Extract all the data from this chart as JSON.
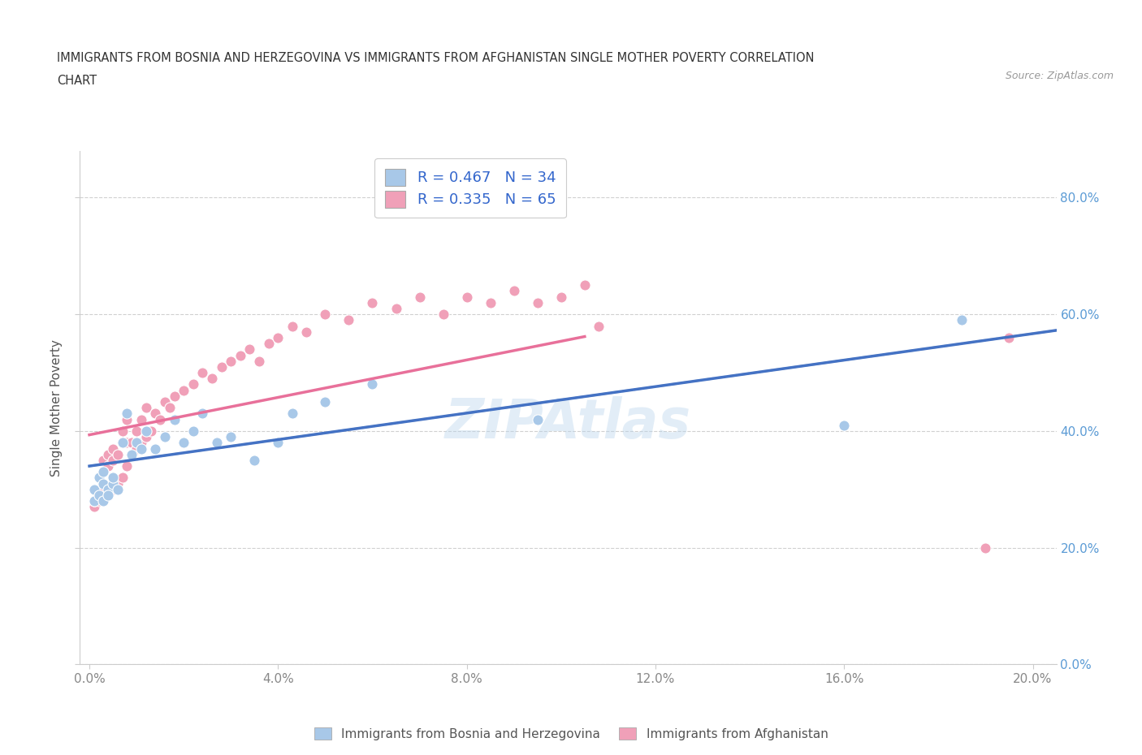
{
  "title_line1": "IMMIGRANTS FROM BOSNIA AND HERZEGOVINA VS IMMIGRANTS FROM AFGHANISTAN SINGLE MOTHER POVERTY CORRELATION",
  "title_line2": "CHART",
  "source": "Source: ZipAtlas.com",
  "ylabel": "Single Mother Poverty",
  "legend_r1": "R = 0.467",
  "legend_n1": "N = 34",
  "legend_r2": "R = 0.335",
  "legend_n2": "N = 65",
  "color_bosnia": "#a8c8e8",
  "color_afghanistan": "#f0a0b8",
  "color_regression_bosnia": "#4472c4",
  "color_regression_afghanistan": "#e8709a",
  "color_regression_dashed": "#c0c0c0",
  "watermark": "ZIPAtlas",
  "y_tick_values": [
    0.0,
    0.2,
    0.4,
    0.6,
    0.8
  ],
  "x_tick_values": [
    0.0,
    0.04,
    0.08,
    0.12,
    0.16,
    0.2
  ],
  "xlim": [
    -0.002,
    0.205
  ],
  "ylim": [
    0.1,
    0.88
  ],
  "bosnia_x": [
    0.001,
    0.001,
    0.002,
    0.002,
    0.003,
    0.003,
    0.003,
    0.004,
    0.004,
    0.005,
    0.005,
    0.006,
    0.007,
    0.008,
    0.009,
    0.01,
    0.011,
    0.012,
    0.014,
    0.016,
    0.018,
    0.02,
    0.022,
    0.024,
    0.027,
    0.03,
    0.035,
    0.04,
    0.043,
    0.05,
    0.06,
    0.095,
    0.16,
    0.185
  ],
  "bosnia_y": [
    0.3,
    0.28,
    0.32,
    0.29,
    0.33,
    0.28,
    0.31,
    0.3,
    0.29,
    0.31,
    0.32,
    0.3,
    0.38,
    0.43,
    0.36,
    0.38,
    0.37,
    0.4,
    0.37,
    0.39,
    0.42,
    0.38,
    0.4,
    0.43,
    0.38,
    0.39,
    0.35,
    0.38,
    0.43,
    0.45,
    0.48,
    0.42,
    0.41,
    0.59
  ],
  "afghanistan_x": [
    0.001,
    0.001,
    0.001,
    0.002,
    0.002,
    0.002,
    0.003,
    0.003,
    0.003,
    0.004,
    0.004,
    0.004,
    0.005,
    0.005,
    0.005,
    0.006,
    0.006,
    0.007,
    0.007,
    0.007,
    0.008,
    0.008,
    0.008,
    0.009,
    0.009,
    0.01,
    0.01,
    0.011,
    0.011,
    0.012,
    0.012,
    0.013,
    0.014,
    0.015,
    0.016,
    0.017,
    0.018,
    0.02,
    0.022,
    0.024,
    0.026,
    0.028,
    0.03,
    0.032,
    0.034,
    0.036,
    0.038,
    0.04,
    0.043,
    0.046,
    0.05,
    0.055,
    0.06,
    0.065,
    0.07,
    0.075,
    0.08,
    0.085,
    0.09,
    0.095,
    0.1,
    0.105,
    0.108,
    0.19,
    0.195
  ],
  "afghanistan_y": [
    0.27,
    0.28,
    0.3,
    0.28,
    0.29,
    0.32,
    0.3,
    0.33,
    0.35,
    0.29,
    0.34,
    0.36,
    0.3,
    0.35,
    0.37,
    0.31,
    0.36,
    0.38,
    0.32,
    0.4,
    0.34,
    0.38,
    0.42,
    0.36,
    0.38,
    0.37,
    0.4,
    0.38,
    0.42,
    0.39,
    0.44,
    0.4,
    0.43,
    0.42,
    0.45,
    0.44,
    0.46,
    0.47,
    0.48,
    0.5,
    0.49,
    0.51,
    0.52,
    0.53,
    0.54,
    0.52,
    0.55,
    0.56,
    0.58,
    0.57,
    0.6,
    0.59,
    0.62,
    0.61,
    0.63,
    0.6,
    0.63,
    0.62,
    0.64,
    0.62,
    0.63,
    0.65,
    0.58,
    0.2,
    0.56
  ]
}
